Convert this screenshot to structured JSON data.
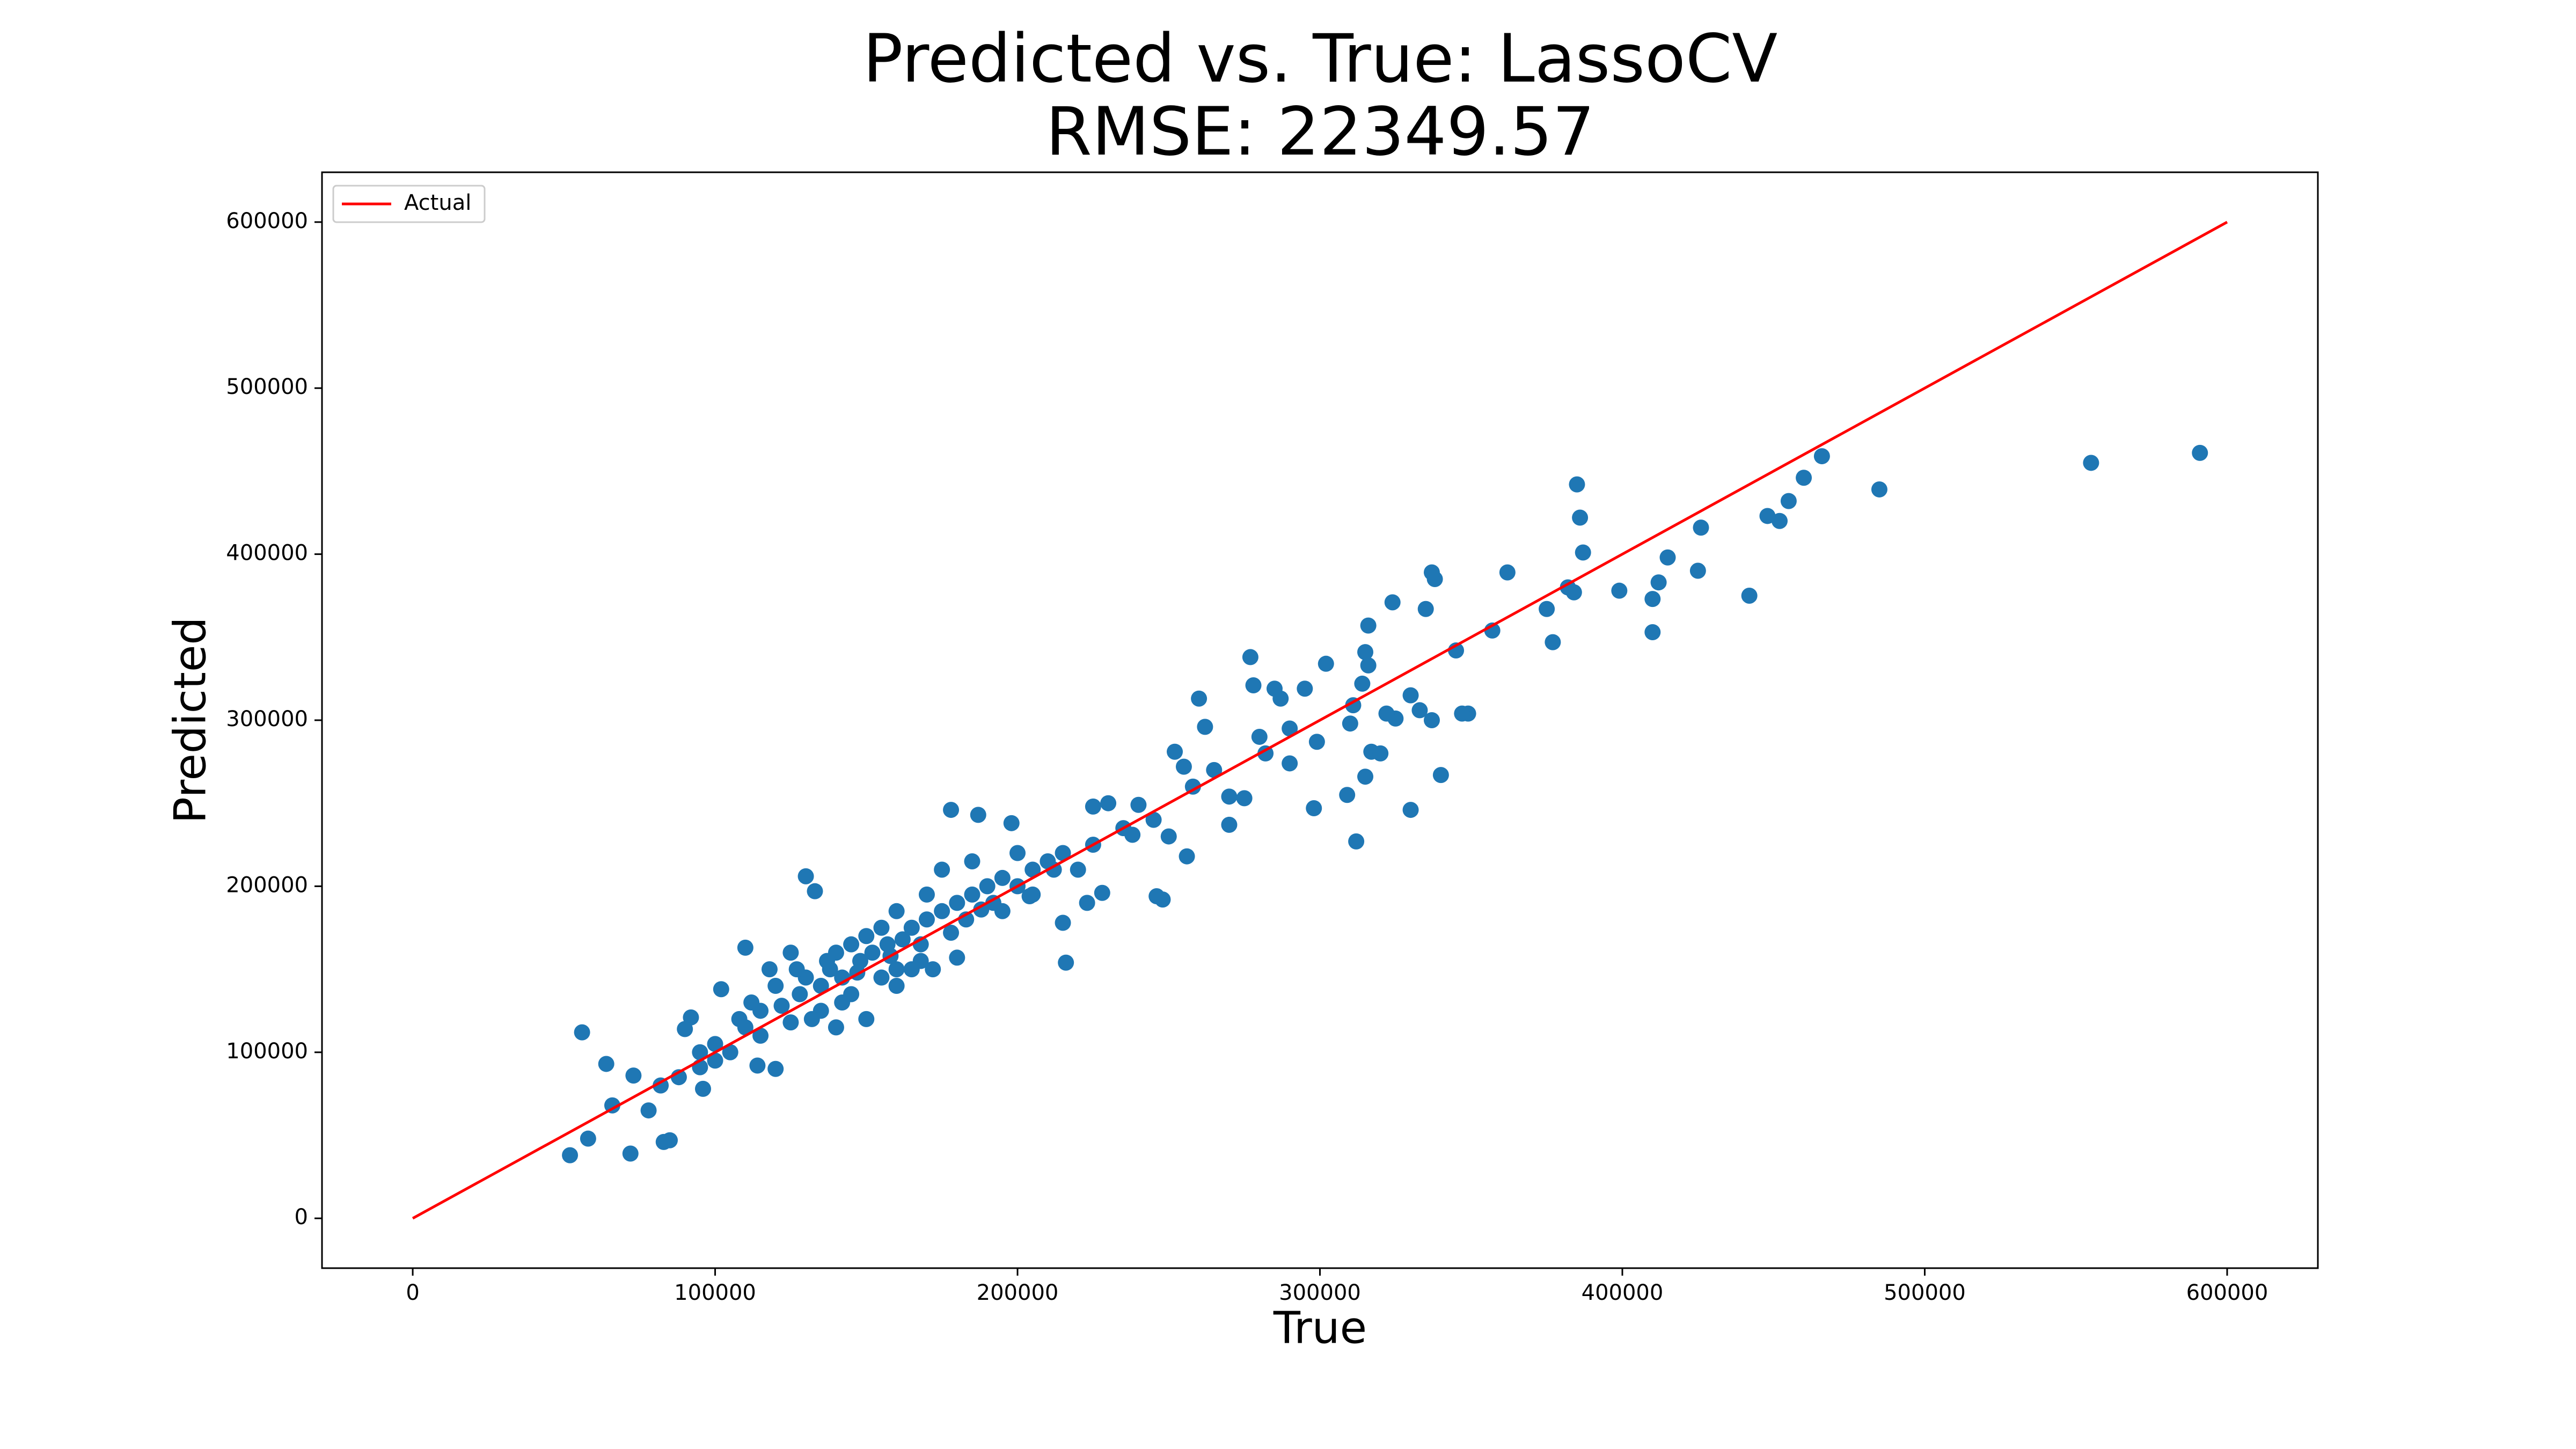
{
  "chart_data": {
    "type": "scatter",
    "title": "Predicted vs. True: LassoCV",
    "subtitle": "RMSE: 22349.57",
    "x_label": "True",
    "y_label": "Predicted",
    "color": "#1f77b4",
    "x": [
      591000,
      555000,
      485000,
      466000,
      460000,
      455000,
      452000,
      448000,
      442000,
      426000,
      425000,
      415000,
      412000,
      410000,
      410000,
      399000,
      385000,
      386000,
      387000,
      382000,
      384000,
      377000,
      375000,
      362000,
      357000,
      345000,
      340000,
      338000,
      337000,
      335000,
      349000,
      347000,
      337000,
      333000,
      330000,
      330000,
      325000,
      322000,
      324000,
      316000,
      315000,
      316000,
      314000,
      315000,
      317000,
      320000,
      311000,
      310000,
      312000,
      309000,
      299000,
      298000,
      302000,
      295000,
      290000,
      287000,
      285000,
      282000,
      277000,
      278000,
      275000,
      270000,
      270000,
      262000,
      260000,
      258000,
      255000,
      252000,
      248000,
      246000,
      256000,
      240000,
      238000,
      230000,
      225000,
      228000,
      223000,
      215000,
      216000,
      212000,
      204000,
      200000,
      198000,
      187000,
      178000,
      180000,
      172000,
      168000,
      130000,
      133000,
      110000,
      102000,
      56000,
      64000,
      66000,
      73000,
      58000,
      52000,
      72000,
      78000,
      82000,
      85000,
      83000,
      92000,
      96000,
      90000,
      95000,
      114000,
      120000,
      140000,
      150000,
      160000,
      155000,
      145000,
      125000,
      118000,
      112000,
      108000,
      105000,
      122000,
      128000,
      135000,
      138000,
      142000,
      148000,
      152000,
      158000,
      162000,
      165000,
      170000,
      175000,
      180000,
      185000,
      190000,
      195000,
      200000,
      205000,
      210000,
      215000,
      220000,
      178000,
      183000,
      188000,
      192000,
      168000,
      160000,
      155000,
      145000,
      135000,
      125000,
      115000,
      100000,
      95000,
      88000,
      130000,
      140000,
      150000,
      160000,
      170000,
      175000,
      185000,
      120000,
      110000,
      132000,
      142000,
      165000,
      195000,
      205000,
      225000,
      235000,
      245000,
      250000,
      265000,
      280000,
      290000,
      100000,
      115000,
      127000,
      137000,
      147000,
      157000
    ],
    "values": [
      461000,
      455000,
      439000,
      459000,
      446000,
      432000,
      420000,
      423000,
      375000,
      416000,
      390000,
      398000,
      383000,
      373000,
      353000,
      378000,
      442000,
      422000,
      401000,
      380000,
      377000,
      347000,
      367000,
      389000,
      354000,
      342000,
      267000,
      385000,
      389000,
      367000,
      304000,
      304000,
      300000,
      306000,
      315000,
      246000,
      301000,
      304000,
      371000,
      357000,
      341000,
      333000,
      322000,
      266000,
      281000,
      280000,
      309000,
      298000,
      227000,
      255000,
      287000,
      247000,
      334000,
      319000,
      274000,
      313000,
      319000,
      280000,
      338000,
      321000,
      253000,
      254000,
      237000,
      296000,
      313000,
      260000,
      272000,
      281000,
      192000,
      194000,
      218000,
      249000,
      231000,
      250000,
      248000,
      196000,
      190000,
      178000,
      154000,
      210000,
      194000,
      220000,
      238000,
      243000,
      246000,
      157000,
      150000,
      155000,
      206000,
      197000,
      163000,
      138000,
      112000,
      93000,
      68000,
      86000,
      48000,
      38000,
      39000,
      65000,
      80000,
      47000,
      46000,
      121000,
      78000,
      114000,
      91000,
      92000,
      90000,
      115000,
      120000,
      140000,
      175000,
      165000,
      160000,
      150000,
      130000,
      120000,
      100000,
      128000,
      135000,
      140000,
      150000,
      145000,
      155000,
      160000,
      158000,
      168000,
      175000,
      180000,
      185000,
      190000,
      195000,
      200000,
      205000,
      200000,
      210000,
      215000,
      220000,
      210000,
      172000,
      180000,
      186000,
      190000,
      165000,
      150000,
      145000,
      135000,
      125000,
      118000,
      110000,
      105000,
      100000,
      85000,
      145000,
      160000,
      170000,
      185000,
      195000,
      210000,
      215000,
      140000,
      115000,
      120000,
      130000,
      150000,
      185000,
      195000,
      225000,
      235000,
      240000,
      230000,
      270000,
      290000,
      295000,
      95000,
      125000,
      150000,
      155000,
      148000,
      165000
    ],
    "lines": [
      {
        "name": "Actual",
        "color": "#ff0000",
        "x": [
          0,
          600000
        ],
        "values": [
          0,
          600000
        ]
      }
    ],
    "legend": "upper left",
    "xlim": [
      -30000,
      630000
    ],
    "ylim": [
      -30000,
      630000
    ],
    "xticks": [
      0,
      100000,
      200000,
      300000,
      400000,
      500000,
      600000
    ],
    "yticks": [
      0,
      100000,
      200000,
      300000,
      400000,
      500000,
      600000
    ]
  }
}
